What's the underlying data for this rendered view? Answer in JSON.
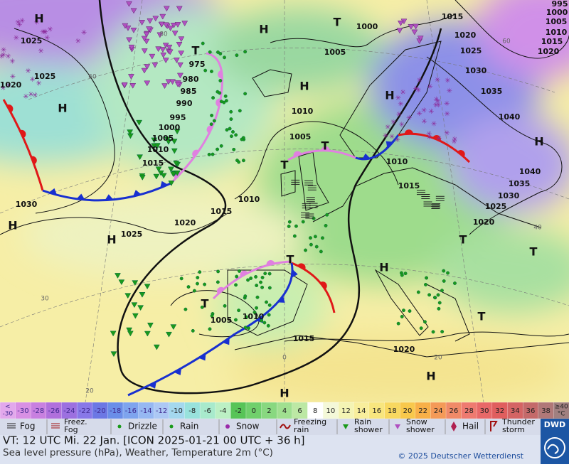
{
  "map_labels": [
    "H",
    "1025",
    "1025",
    "1020",
    "H",
    "1030",
    "H",
    "1025",
    "H",
    "1020",
    "1015",
    "1010",
    "T",
    "975",
    "980",
    "985",
    "990",
    "995",
    "1000",
    "1005",
    "1010",
    "1015",
    "H",
    "T",
    "1000",
    "1005",
    "H",
    "1010",
    "1005",
    "T",
    "T",
    "1010",
    "1015",
    "H",
    "1015",
    "1020",
    "1025",
    "1030",
    "1035",
    "1040",
    "H",
    "1040",
    "1035",
    "1030",
    "1025",
    "1020",
    "995",
    "1000",
    "1005",
    "1010",
    "1015",
    "1020",
    "T",
    "T",
    "H",
    "T",
    "T",
    "1010",
    "1005",
    "1015",
    "1020",
    "H",
    "H",
    "T"
  ],
  "grid_labels": [
    "80",
    "60",
    "60",
    "40",
    "30",
    "20",
    "0",
    "20"
  ],
  "scale_low": [
    "<",
    "-30"
  ],
  "scale_values": [
    -30,
    -28,
    -26,
    -24,
    -22,
    -20,
    -18,
    -16,
    -14,
    -12,
    -10,
    -8,
    -6,
    -4,
    -2,
    0,
    2,
    4,
    6,
    8,
    10,
    12,
    14,
    16,
    18,
    20,
    22,
    24,
    26,
    28,
    30,
    32,
    34,
    36,
    38
  ],
  "scale_high": [
    "≥40",
    "°C"
  ],
  "scale_colors": [
    "#e2a8ec",
    "#d890e4",
    "#c880e0",
    "#b070dc",
    "#9c70e0",
    "#8878e8",
    "#6c78e4",
    "#6a8ee8",
    "#7ea4ee",
    "#96b8f2",
    "#acc8f4",
    "#a4d8ee",
    "#98e2dc",
    "#a8eacc",
    "#bcf0c4",
    "#58c458",
    "#70d06c",
    "#88d880",
    "#a0e090",
    "#bce8a4",
    "#ffffff",
    "#f4f8d8",
    "#f4f4b4",
    "#f8ee9c",
    "#f8e67e",
    "#f8d860",
    "#f8c84c",
    "#f8b048",
    "#f49a58",
    "#f08a68",
    "#ee7a70",
    "#e86868",
    "#e05e5e",
    "#d46464",
    "#c46a6a",
    "#b07878",
    "#a08080"
  ],
  "weather_legend": [
    [
      "Fog"
    ],
    [
      "Freez.",
      "Fog"
    ],
    [
      "Drizzle"
    ],
    [
      "Rain"
    ],
    [
      "Snow"
    ],
    [
      "Freezing",
      "rain"
    ],
    [
      "Rain",
      "shower"
    ],
    [
      "Snow",
      "shower"
    ],
    [
      "Hail"
    ],
    [
      "Thunder",
      "storm"
    ]
  ],
  "footer": {
    "valid_time": "VT: 12 UTC Mi.  22 Jan. [ICON 2025-01-21  00 UTC + 36 h]",
    "description": "Sea level pressure (hPa), Weather, Temperature 2m (°C)",
    "copyright": "© 2025 Deutscher Wetterdienst",
    "logo": "DWD"
  }
}
